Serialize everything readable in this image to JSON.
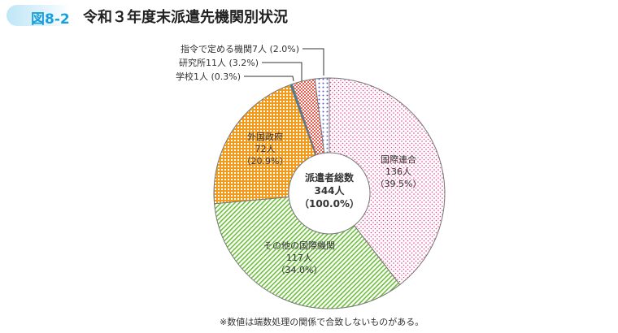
{
  "header": {
    "badge": "図8-2",
    "title": "令和３年度末派遣先機関別状況"
  },
  "note": "※数値は端数処理の関係で合致しないものがある。",
  "chart_data": {
    "type": "pie",
    "donut": true,
    "title": "令和３年度末派遣先機関別状況",
    "center_label": [
      "派遣者総数",
      "344人",
      "（100.0%）"
    ],
    "slices": [
      {
        "name": "国際連合",
        "count": "136人",
        "percent": 39.5,
        "pct_label": "（39.5%）",
        "color": "#e8408a",
        "pattern": "dots"
      },
      {
        "name": "その他の国際機関",
        "count": "117人",
        "percent": 34.0,
        "pct_label": "（34.0%）",
        "color": "#6cbf3a",
        "pattern": "diagonal"
      },
      {
        "name": "外国政府",
        "count": "72人",
        "percent": 20.9,
        "pct_label": "（20.9%）",
        "color": "#f29a1a",
        "pattern": "check"
      },
      {
        "name": "学校",
        "count": "1人",
        "percent": 0.3,
        "pct_label": "(0.3%)",
        "color": "#3a7fa8",
        "pattern": "solid",
        "callout": "学校1人 (0.3%)"
      },
      {
        "name": "研究所",
        "count": "11人",
        "percent": 3.2,
        "pct_label": "(3.2%)",
        "color": "#ef5a4a",
        "pattern": "check",
        "callout": "研究所11人 (3.2%)"
      },
      {
        "name": "指令で定める機関",
        "count": "7人",
        "percent": 2.0,
        "pct_label": "(2.0%)",
        "color": "#5a5ac8",
        "pattern": "dots",
        "callout": "指令で定める機関7人 (2.0%)"
      }
    ]
  }
}
